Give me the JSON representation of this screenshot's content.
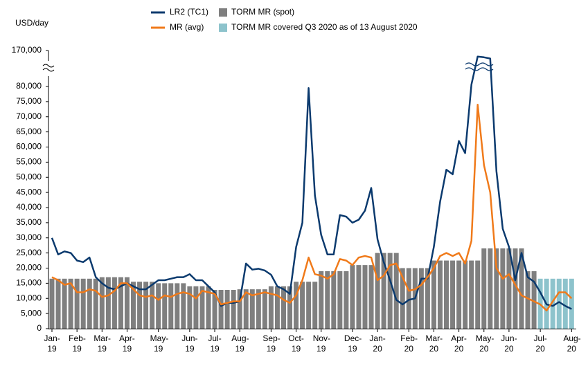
{
  "chart_data": {
    "type": "combo",
    "y_label": "USD/day",
    "axis_break": true,
    "ylim": [
      0,
      170000
    ],
    "yticks": [
      0,
      {
        "value": 5000,
        "label": "5,000"
      },
      {
        "value": 10000,
        "label": "10,000"
      },
      {
        "value": 15000,
        "label": "15,000"
      },
      {
        "value": 20000,
        "label": "20,000"
      },
      {
        "value": 25000,
        "label": "25,000"
      },
      {
        "value": 30000,
        "label": "30,000"
      },
      {
        "value": 35000,
        "label": "35,000"
      },
      {
        "value": 40000,
        "label": "40,000"
      },
      {
        "value": 45000,
        "label": "45,000"
      },
      {
        "value": 50000,
        "label": "50,000"
      },
      {
        "value": 55000,
        "label": "55,000"
      },
      {
        "value": 60000,
        "label": "60,000"
      },
      {
        "value": 65000,
        "label": "65,000"
      },
      {
        "value": 70000,
        "label": "70,000"
      },
      {
        "value": 75000,
        "label": "75,000"
      },
      {
        "value": 80000,
        "label": "80,000"
      },
      {
        "value": 170000,
        "label": "170,000"
      }
    ],
    "categories": [
      "Jan-19",
      null,
      null,
      null,
      "Feb-19",
      null,
      null,
      null,
      "Mar-19",
      null,
      null,
      null,
      "Apr-19",
      null,
      null,
      null,
      null,
      "May-19",
      null,
      null,
      null,
      null,
      "Jun-19",
      null,
      null,
      null,
      "Jul-19",
      null,
      null,
      null,
      "Aug-19",
      null,
      null,
      null,
      null,
      "Sep-19",
      null,
      null,
      null,
      "Oct-19",
      null,
      null,
      null,
      "Nov-19",
      null,
      null,
      null,
      null,
      "Dec-19",
      null,
      null,
      null,
      "Jan-20",
      null,
      null,
      null,
      null,
      "Feb-20",
      null,
      null,
      null,
      "Mar-20",
      null,
      null,
      null,
      "Apr-20",
      null,
      null,
      null,
      "May-20",
      null,
      null,
      null,
      "Jun-20",
      null,
      null,
      null,
      null,
      "Jul-20",
      null,
      null,
      null,
      null,
      "Aug-20"
    ],
    "series": [
      {
        "name": "LR2 (TC1)",
        "type": "line",
        "color": "#0b3a6e",
        "values": [
          30000,
          24500,
          25500,
          25000,
          22500,
          22000,
          23500,
          17000,
          15000,
          13500,
          13000,
          14000,
          15000,
          14000,
          13000,
          13000,
          14500,
          16000,
          16000,
          16500,
          17000,
          17000,
          18000,
          16000,
          16000,
          14000,
          12000,
          7500,
          8500,
          8500,
          9000,
          21500,
          19500,
          19800,
          19200,
          17800,
          14000,
          13000,
          11500,
          27000,
          35000,
          79500,
          44000,
          31000,
          24500,
          24500,
          37500,
          37000,
          35000,
          36000,
          39000,
          46500,
          29500,
          22000,
          16000,
          9500,
          8000,
          9500,
          10000,
          16500,
          16500,
          27000,
          42000,
          52500,
          51000,
          62000,
          58000,
          85000,
          155000,
          153000,
          150000,
          52000,
          33000,
          27000,
          16000,
          25000,
          17000,
          15500,
          12000,
          8000,
          7500,
          8800,
          7500,
          6500
        ]
      },
      {
        "name": "MR (avg)",
        "type": "line",
        "color": "#f07a1a",
        "values": [
          17000,
          16000,
          14500,
          15000,
          12000,
          12000,
          13000,
          12500,
          10500,
          11000,
          12500,
          15000,
          15000,
          13000,
          11000,
          10500,
          11000,
          9500,
          11000,
          10500,
          11500,
          12000,
          11500,
          10000,
          12500,
          12000,
          11500,
          8000,
          8500,
          9000,
          9000,
          12000,
          11000,
          11500,
          12000,
          11500,
          11000,
          9500,
          8500,
          11000,
          16000,
          23500,
          18000,
          17500,
          16500,
          18000,
          23000,
          22500,
          21000,
          23500,
          24000,
          23500,
          16000,
          17500,
          21000,
          21500,
          17000,
          12500,
          13000,
          14500,
          17000,
          20000,
          24000,
          25000,
          24000,
          25000,
          21500,
          29000,
          74000,
          54000,
          45000,
          20000,
          16500,
          18000,
          14500,
          11000,
          10000,
          9000,
          8000,
          6000,
          9000,
          12000,
          12000,
          10000
        ]
      },
      {
        "name": "TORM MR (spot)",
        "type": "bar",
        "color": "#7f7f7f",
        "values": [
          16500,
          16500,
          16500,
          16500,
          16500,
          16500,
          16500,
          16500,
          17000,
          17000,
          17000,
          17000,
          17000,
          15500,
          15500,
          15500,
          15500,
          15000,
          15000,
          15000,
          15000,
          15000,
          14000,
          14000,
          14000,
          14000,
          12800,
          12800,
          12800,
          12800,
          13000,
          13000,
          13000,
          13000,
          13000,
          14000,
          14000,
          14000,
          14000,
          15500,
          15500,
          15500,
          15500,
          19000,
          19000,
          19000,
          19000,
          19000,
          21000,
          21000,
          21000,
          21000,
          25000,
          25000,
          25000,
          25000,
          20000,
          20000,
          20000,
          20000,
          20000,
          22500,
          22500,
          22500,
          22500,
          22500,
          22500,
          22500,
          22500,
          26500,
          26500,
          26500,
          26500,
          26500,
          26500,
          26500,
          19000,
          19000,
          null,
          null,
          null,
          null,
          null,
          null
        ]
      },
      {
        "name": "TORM MR covered Q3 2020 as of 13 August 2020",
        "type": "bar",
        "color": "#8dc3cc",
        "values": [
          null,
          null,
          null,
          null,
          null,
          null,
          null,
          null,
          null,
          null,
          null,
          null,
          null,
          null,
          null,
          null,
          null,
          null,
          null,
          null,
          null,
          null,
          null,
          null,
          null,
          null,
          null,
          null,
          null,
          null,
          null,
          null,
          null,
          null,
          null,
          null,
          null,
          null,
          null,
          null,
          null,
          null,
          null,
          null,
          null,
          null,
          null,
          null,
          null,
          null,
          null,
          null,
          null,
          null,
          null,
          null,
          null,
          null,
          null,
          null,
          null,
          null,
          null,
          null,
          null,
          null,
          null,
          null,
          null,
          null,
          null,
          null,
          null,
          null,
          null,
          null,
          null,
          null,
          16500,
          16500,
          16500,
          16500,
          16500,
          16500
        ]
      }
    ]
  }
}
